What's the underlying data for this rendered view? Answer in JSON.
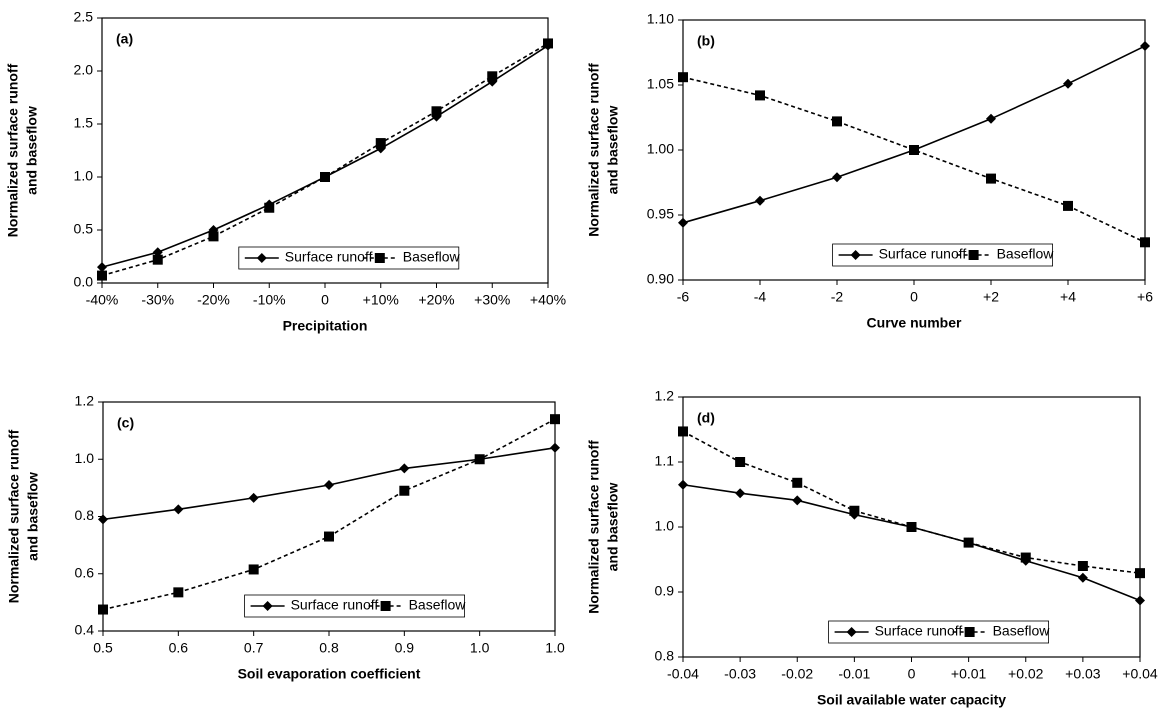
{
  "chart_data": [
    {
      "type": "line",
      "annotation": "(a)",
      "xlabel": "Precipitation",
      "ylabel": [
        "Normalized surface runoff",
        "and baseflow"
      ],
      "categories": [
        "-40%",
        "-30%",
        "-20%",
        "-10%",
        "0",
        "+10%",
        "+20%",
        "+30%",
        "+40%"
      ],
      "ylim": [
        0,
        2.5
      ],
      "yticks": [
        {
          "value": 0,
          "label": "0.0"
        },
        0.5,
        {
          "value": 1,
          "label": "1.0"
        },
        1.5,
        {
          "value": 2,
          "label": "2.0"
        },
        2.5
      ],
      "legend": "lower right",
      "series": [
        {
          "name": "Surface runoff",
          "color": "#000000",
          "marker": "diamond",
          "line_style": "solid",
          "values": [
            0.15,
            0.29,
            0.5,
            0.74,
            1.0,
            1.27,
            1.57,
            1.9,
            2.24
          ]
        },
        {
          "name": "Baseflow",
          "color": "#000000",
          "marker": "square",
          "line_style": "dashed",
          "values": [
            0.07,
            0.22,
            0.44,
            0.71,
            1.0,
            1.32,
            1.62,
            1.95,
            2.26
          ]
        }
      ]
    },
    {
      "type": "line",
      "annotation": "(b)",
      "xlabel": "Curve number",
      "ylabel": [
        "Normalized surface runoff",
        "and baseflow"
      ],
      "categories": [
        "-6",
        "-4",
        "-2",
        "0",
        "+2",
        "+4",
        "+6"
      ],
      "ylim": [
        0.9,
        1.1
      ],
      "yticks": [
        {
          "value": 0.9,
          "label": "0.90"
        },
        0.95,
        {
          "value": 1,
          "label": "1.00"
        },
        1.05,
        {
          "value": 1.1,
          "label": "1.10"
        }
      ],
      "legend": "lower right",
      "series": [
        {
          "name": "Surface runoff",
          "color": "#000000",
          "marker": "diamond",
          "line_style": "solid",
          "values": [
            0.944,
            0.961,
            0.979,
            1.0,
            1.024,
            1.051,
            1.08
          ]
        },
        {
          "name": "Baseflow",
          "color": "#000000",
          "marker": "square",
          "line_style": "dashed",
          "values": [
            1.056,
            1.042,
            1.022,
            1.0,
            0.978,
            0.957,
            0.929
          ]
        }
      ]
    },
    {
      "type": "line",
      "annotation": "(c)",
      "xlabel": "Soil evaporation coefficient",
      "ylabel": [
        "Normalized surface runoff",
        "and baseflow"
      ],
      "categories": [
        "0.5",
        "0.6",
        "0.7",
        "0.8",
        "0.9",
        "1.0",
        "1.0"
      ],
      "ylim": [
        0.4,
        1.2
      ],
      "yticks": [
        0.4,
        0.6,
        0.8,
        {
          "value": 1,
          "label": "1.0"
        },
        1.2
      ],
      "legend": "lower right",
      "series": [
        {
          "name": "Surface runoff",
          "color": "#000000",
          "marker": "diamond",
          "line_style": "solid",
          "values": [
            0.79,
            0.825,
            0.865,
            0.91,
            0.968,
            1.0,
            1.04
          ]
        },
        {
          "name": "Baseflow",
          "color": "#000000",
          "marker": "square",
          "line_style": "dashed",
          "values": [
            0.475,
            0.535,
            0.615,
            0.73,
            0.89,
            1.0,
            1.14
          ]
        }
      ]
    },
    {
      "type": "line",
      "annotation": "(d)",
      "xlabel": "Soil available water capacity",
      "ylabel": [
        "Normalized surface runoff",
        "and baseflow"
      ],
      "categories": [
        "-0.04",
        "-0.03",
        "-0.02",
        "-0.01",
        "0",
        "+0.01",
        "+0.02",
        "+0.03",
        "+0.04"
      ],
      "ylim": [
        0.8,
        1.2
      ],
      "yticks": [
        0.8,
        0.9,
        {
          "value": 1,
          "label": "1.0"
        },
        1.1,
        1.2
      ],
      "legend": "lower right",
      "series": [
        {
          "name": "Surface runoff",
          "color": "#000000",
          "marker": "diamond",
          "line_style": "solid",
          "values": [
            1.065,
            1.052,
            1.041,
            1.019,
            1.0,
            0.976,
            0.948,
            0.922,
            0.887
          ]
        },
        {
          "name": "Baseflow",
          "color": "#000000",
          "marker": "square",
          "line_style": "dashed",
          "values": [
            1.147,
            1.1,
            1.068,
            1.025,
            1.0,
            0.976,
            0.953,
            0.94,
            0.929
          ]
        }
      ]
    }
  ]
}
